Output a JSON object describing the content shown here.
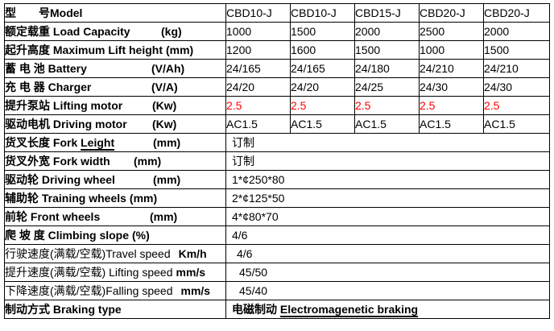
{
  "colors": {
    "border": "#000000",
    "text": "#000000",
    "highlight_red": "#ff0000",
    "squiggle_red": "#ff0000",
    "background": "#ffffff"
  },
  "table": {
    "column_count": 6,
    "label_column_width": 275,
    "data_column_widths": [
      80,
      80,
      80,
      80,
      82
    ]
  },
  "rows": [
    {
      "id": "model",
      "label": "型　　号Model",
      "unit": "",
      "tab": null,
      "bold_label": true,
      "values": [
        "CBD10-J",
        "CBD10-J",
        "CBD15-J",
        "CBD20-J",
        "CBD20-J"
      ]
    },
    {
      "id": "load-capacity",
      "label": "额定载重 Load Capacity",
      "unit": "(kg)",
      "tab": 194,
      "bold_label": true,
      "values": [
        "1000",
        "1500",
        "2000",
        "2500",
        "2000"
      ]
    },
    {
      "id": "lift-height",
      "label": "起升高度 Maximum Lift height",
      "unit": "(mm)",
      "tab": null,
      "bold_label": true,
      "values": [
        "1200",
        "1600",
        "1500",
        "1000",
        "1500"
      ]
    },
    {
      "id": "battery",
      "label": "蓄 电 池 Battery",
      "unit": "(V/Ah)",
      "tab": 182,
      "bold_label": true,
      "values": [
        "24/165",
        "24/165",
        "24/180",
        "24/210",
        "24/210"
      ]
    },
    {
      "id": "charger",
      "label": "充 电 器 Charger",
      "unit": "(V/A)",
      "tab": 182,
      "bold_label": true,
      "values": [
        "24/20",
        "24/20",
        "24/25",
        "24/30",
        "24/30"
      ]
    },
    {
      "id": "lifting-motor",
      "label": "提升泵站 Lifting motor",
      "unit": "(Kw)",
      "tab": 183,
      "bold_label": true,
      "values": [
        "2.5",
        "2.5",
        "2.5",
        "2.5",
        "2.5"
      ],
      "red_values": true
    },
    {
      "id": "driving-motor",
      "label": "驱动电机 Driving motor",
      "unit": "(Kw)",
      "tab": 183,
      "bold_label": true,
      "values": [
        "AC1.5",
        "AC1.5",
        "AC1.5",
        "AC1.5",
        "AC1.5"
      ]
    },
    {
      "id": "fork-length",
      "label": "货叉长度 Fork ",
      "label_misspelled": "Leight",
      "unit": "(mm)",
      "tab": 184,
      "bold_label": true,
      "merged_value": "订制",
      "indent": 7
    },
    {
      "id": "fork-width",
      "label": "货叉外宽 Fork width",
      "unit": "(mm)",
      "tab": 160,
      "bold_label": true,
      "merged_value": "订制",
      "indent": 7
    },
    {
      "id": "driving-wheel",
      "label": "驱动轮 Driving wheel",
      "unit": "(mm)",
      "tab": 184,
      "bold_label": true,
      "merged_value": "1*¢250*80",
      "indent": 7
    },
    {
      "id": "training-wheels",
      "label": "辅助轮 Training wheels",
      "unit": "(mm)",
      "tab": null,
      "bold_label": true,
      "merged_value": "2*¢125*50",
      "indent": 7
    },
    {
      "id": "front-wheels",
      "label": "前轮 Front wheels",
      "unit": "(mm)",
      "tab": 180,
      "bold_label": true,
      "merged_value": "4*¢80*70",
      "indent": 7
    },
    {
      "id": "climbing-slope",
      "label": "爬 坡 度 Climbing slope",
      "unit": "(%)",
      "tab": null,
      "bold_label": true,
      "merged_value": "4/6",
      "indent": 7
    },
    {
      "id": "travel-speed",
      "label": "行驶速度(满载/空载)Travel speed",
      "unit": "Km/h",
      "tab": null,
      "wide_gap": true,
      "bold_label": false,
      "merged_value": "4/6",
      "indent": 13
    },
    {
      "id": "lifting-speed",
      "label": "提升速度(满载/空载) Lifting speed",
      "unit": "mm/s",
      "tab": null,
      "bold_label": false,
      "merged_value": "45/50",
      "indent": 16
    },
    {
      "id": "falling-speed",
      "label": "下降速度(满载/空载)Falling speed",
      "unit": "mm/s",
      "tab": null,
      "wide_gap": true,
      "bold_label": false,
      "merged_value": "45/40",
      "indent": 16
    },
    {
      "id": "braking-type",
      "label": "制动方式 Braking type",
      "unit": "",
      "tab": null,
      "bold_label": true,
      "merged_rich": {
        "prefix": "电磁制动 ",
        "underlined_misspelled": "Electromagenetic",
        "underlined_rest": " braking"
      },
      "indent": 7
    }
  ]
}
